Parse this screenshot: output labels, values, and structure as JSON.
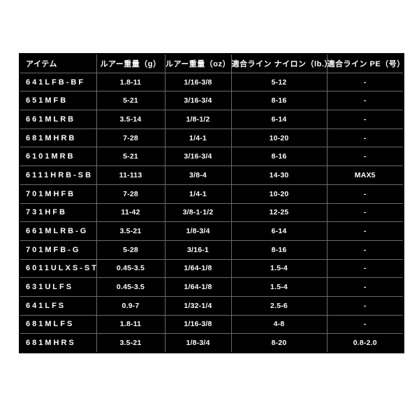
{
  "page": {
    "background_color": "#ffffff"
  },
  "table": {
    "colors": {
      "cell_background": "#000000",
      "grid_line": "#6b6b6b",
      "text": "#ffffff",
      "outer_border": "#050505"
    },
    "columns": [
      {
        "key": "item",
        "label": "アイテム"
      },
      {
        "key": "lure_weight_g",
        "label": "ルアー重量（g）"
      },
      {
        "key": "lure_weight_oz",
        "label": "ルアー重量（oz）"
      },
      {
        "key": "line_nylon_lb",
        "label": "適合ライン ナイロン（lb.）"
      },
      {
        "key": "line_pe_gou",
        "label": "適合ライン PE（号）"
      }
    ],
    "rows": [
      [
        "641LFB-BF",
        "1.8-11",
        "1/16-3/8",
        "5-12",
        "-"
      ],
      [
        "651MFB",
        "5-21",
        "3/16-3/4",
        "8-16",
        "-"
      ],
      [
        "661MLRB",
        "3.5-14",
        "1/8-1/2",
        "6-14",
        "-"
      ],
      [
        "681MHRB",
        "7-28",
        "1/4-1",
        "10-20",
        "-"
      ],
      [
        "6101MRB",
        "5-21",
        "3/16-3/4",
        "8-16",
        "-"
      ],
      [
        "6111HRB-SB",
        "11-113",
        "3/8-4",
        "14-30",
        "MAX5"
      ],
      [
        "701MHFB",
        "7-28",
        "1/4-1",
        "10-20",
        "-"
      ],
      [
        "731HFB",
        "11-42",
        "3/8-1·1/2",
        "12-25",
        "-"
      ],
      [
        "661MLRB-G",
        "3.5-21",
        "1/8-3/4",
        "6-14",
        "-"
      ],
      [
        "701MFB-G",
        "5-28",
        "3/16-1",
        "8-16",
        "-"
      ],
      [
        "6011ULXS-ST",
        "0.45-3.5",
        "1/64-1/8",
        "1.5-4",
        "-"
      ],
      [
        "631ULFS",
        "0.45-3.5",
        "1/64-1/8",
        "1.5-4",
        "-"
      ],
      [
        "641LFS",
        "0.9-7",
        "1/32-1/4",
        "2.5-6",
        "-"
      ],
      [
        "681MLFS",
        "1.8-11",
        "1/16-3/8",
        "4-8",
        "-"
      ],
      [
        "681MHRS",
        "3.5-21",
        "1/8-3/4",
        "8-20",
        "0.8-2.0"
      ]
    ]
  }
}
